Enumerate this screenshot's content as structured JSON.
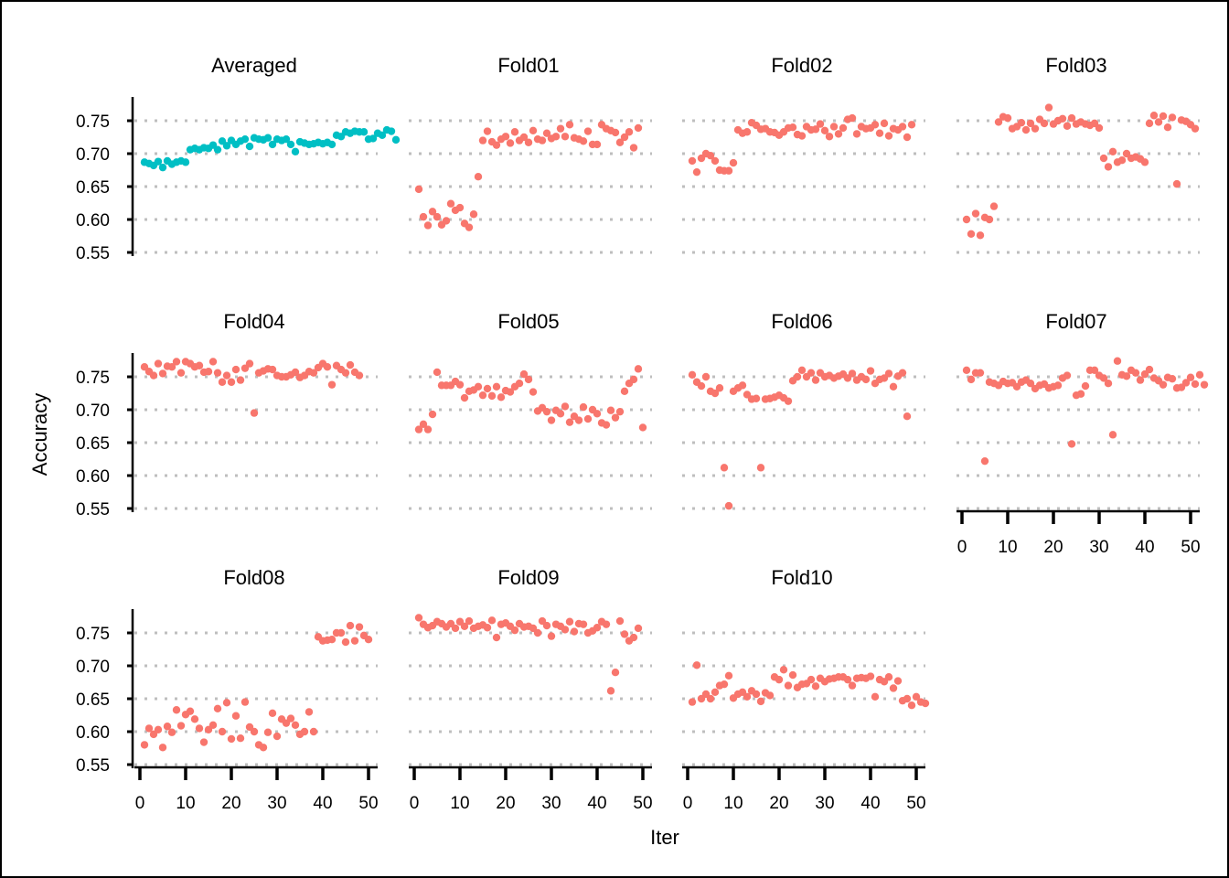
{
  "chart_data": {
    "type": "scatter",
    "xlabel": "Iter",
    "ylabel": "Accuracy",
    "xlim": [
      0,
      50
    ],
    "ylim": [
      0.55,
      0.76
    ],
    "x_ticks": [
      0,
      10,
      20,
      30,
      40,
      50
    ],
    "y_ticks": [
      0.55,
      0.6,
      0.65,
      0.7,
      0.75
    ],
    "y_tick_labels": [
      "0.55",
      "0.60",
      "0.65",
      "0.70",
      "0.75"
    ],
    "grid": "horizontal dotted",
    "colors": {
      "averaged": "#00BFC4",
      "fold": "#F8766D",
      "grid": "#BEBEBE"
    },
    "panels": [
      {
        "name": "Averaged",
        "color": "averaged",
        "x_start": 1,
        "values": [
          0.687,
          0.685,
          0.682,
          0.688,
          0.679,
          0.689,
          0.684,
          0.687,
          0.689,
          0.687,
          0.706,
          0.708,
          0.706,
          0.709,
          0.708,
          0.713,
          0.706,
          0.719,
          0.712,
          0.72,
          0.714,
          0.719,
          0.722,
          0.711,
          0.724,
          0.722,
          0.721,
          0.724,
          0.714,
          0.722,
          0.72,
          0.722,
          0.714,
          0.703,
          0.718,
          0.716,
          0.714,
          0.715,
          0.717,
          0.715,
          0.717,
          0.714,
          0.728,
          0.726,
          0.733,
          0.731,
          0.734,
          0.733,
          0.733,
          0.722,
          0.723,
          0.731,
          0.728,
          0.736,
          0.734,
          0.721
        ]
      },
      {
        "name": "Fold01",
        "color": "fold",
        "x_start": 1,
        "values": [
          0.646,
          0.604,
          0.591,
          0.612,
          0.604,
          0.592,
          0.598,
          0.624,
          0.614,
          0.618,
          0.594,
          0.588,
          0.608,
          0.665,
          0.72,
          0.734,
          0.718,
          0.713,
          0.722,
          0.726,
          0.716,
          0.733,
          0.72,
          0.725,
          0.717,
          0.735,
          0.722,
          0.72,
          0.731,
          0.723,
          0.726,
          0.738,
          0.726,
          0.744,
          0.724,
          0.722,
          0.719,
          0.734,
          0.714,
          0.714,
          0.744,
          0.738,
          0.735,
          0.732,
          0.717,
          0.725,
          0.733,
          0.709,
          0.739
        ]
      },
      {
        "name": "Fold02",
        "color": "fold",
        "x_start": 1,
        "values": [
          0.689,
          0.672,
          0.693,
          0.7,
          0.697,
          0.689,
          0.675,
          0.674,
          0.674,
          0.686,
          0.736,
          0.731,
          0.733,
          0.747,
          0.743,
          0.737,
          0.738,
          0.733,
          0.732,
          0.728,
          0.733,
          0.739,
          0.74,
          0.729,
          0.727,
          0.741,
          0.736,
          0.737,
          0.745,
          0.735,
          0.726,
          0.741,
          0.73,
          0.739,
          0.752,
          0.754,
          0.73,
          0.741,
          0.738,
          0.739,
          0.744,
          0.731,
          0.746,
          0.727,
          0.738,
          0.736,
          0.741,
          0.725,
          0.744
        ]
      },
      {
        "name": "Fold03",
        "color": "fold",
        "x_start": 1,
        "values": [
          0.6,
          0.578,
          0.609,
          0.576,
          0.603,
          0.6,
          0.62,
          0.748,
          0.756,
          0.754,
          0.738,
          0.741,
          0.747,
          0.736,
          0.746,
          0.738,
          0.752,
          0.746,
          0.77,
          0.745,
          0.75,
          0.753,
          0.742,
          0.754,
          0.745,
          0.748,
          0.745,
          0.743,
          0.746,
          0.739,
          0.693,
          0.68,
          0.703,
          0.687,
          0.69,
          0.7,
          0.693,
          0.695,
          0.692,
          0.687,
          0.746,
          0.758,
          0.748,
          0.757,
          0.74,
          0.755,
          0.654,
          0.751,
          0.749,
          0.744,
          0.738
        ]
      },
      {
        "name": "Fold04",
        "color": "fold",
        "x_start": 1,
        "values": [
          0.765,
          0.758,
          0.752,
          0.77,
          0.755,
          0.766,
          0.765,
          0.773,
          0.756,
          0.773,
          0.77,
          0.765,
          0.767,
          0.757,
          0.758,
          0.773,
          0.756,
          0.742,
          0.752,
          0.742,
          0.761,
          0.745,
          0.763,
          0.77,
          0.695,
          0.756,
          0.759,
          0.762,
          0.761,
          0.752,
          0.75,
          0.75,
          0.753,
          0.757,
          0.749,
          0.752,
          0.758,
          0.756,
          0.764,
          0.77,
          0.765,
          0.738,
          0.767,
          0.761,
          0.756,
          0.768,
          0.757,
          0.752
        ]
      },
      {
        "name": "Fold05",
        "color": "fold",
        "x_start": 1,
        "values": [
          0.67,
          0.678,
          0.67,
          0.693,
          0.757,
          0.737,
          0.737,
          0.737,
          0.743,
          0.738,
          0.718,
          0.728,
          0.73,
          0.735,
          0.722,
          0.732,
          0.721,
          0.735,
          0.719,
          0.729,
          0.727,
          0.735,
          0.74,
          0.754,
          0.746,
          0.727,
          0.698,
          0.703,
          0.697,
          0.684,
          0.699,
          0.694,
          0.705,
          0.681,
          0.69,
          0.684,
          0.704,
          0.686,
          0.7,
          0.694,
          0.68,
          0.677,
          0.699,
          0.688,
          0.697,
          0.728,
          0.74,
          0.746,
          0.762,
          0.673
        ]
      },
      {
        "name": "Fold06",
        "color": "fold",
        "x_start": 1,
        "values": [
          0.753,
          0.742,
          0.736,
          0.75,
          0.728,
          0.725,
          0.733,
          0.612,
          0.554,
          0.728,
          0.733,
          0.737,
          0.723,
          0.716,
          0.717,
          0.612,
          0.716,
          0.717,
          0.719,
          0.722,
          0.718,
          0.713,
          0.744,
          0.75,
          0.76,
          0.75,
          0.756,
          0.745,
          0.756,
          0.75,
          0.752,
          0.748,
          0.751,
          0.754,
          0.748,
          0.755,
          0.745,
          0.75,
          0.746,
          0.759,
          0.74,
          0.746,
          0.748,
          0.755,
          0.735,
          0.751,
          0.756,
          0.69
        ]
      },
      {
        "name": "Fold07",
        "color": "fold",
        "x_start": 1,
        "values": [
          0.76,
          0.746,
          0.756,
          0.756,
          0.622,
          0.742,
          0.74,
          0.737,
          0.743,
          0.74,
          0.741,
          0.735,
          0.742,
          0.745,
          0.74,
          0.732,
          0.737,
          0.739,
          0.733,
          0.735,
          0.737,
          0.748,
          0.752,
          0.648,
          0.722,
          0.724,
          0.736,
          0.76,
          0.76,
          0.752,
          0.748,
          0.74,
          0.662,
          0.774,
          0.753,
          0.751,
          0.76,
          0.756,
          0.745,
          0.754,
          0.761,
          0.748,
          0.744,
          0.738,
          0.749,
          0.747,
          0.733,
          0.734,
          0.741,
          0.749,
          0.739,
          0.753,
          0.738
        ]
      },
      {
        "name": "Fold08",
        "color": "fold",
        "x_start": 1,
        "values": [
          0.58,
          0.605,
          0.596,
          0.603,
          0.576,
          0.608,
          0.599,
          0.633,
          0.609,
          0.626,
          0.631,
          0.619,
          0.605,
          0.584,
          0.603,
          0.61,
          0.635,
          0.6,
          0.644,
          0.589,
          0.624,
          0.59,
          0.645,
          0.607,
          0.6,
          0.58,
          0.576,
          0.599,
          0.628,
          0.593,
          0.619,
          0.613,
          0.62,
          0.61,
          0.596,
          0.6,
          0.63,
          0.6,
          0.744,
          0.738,
          0.739,
          0.74,
          0.75,
          0.75,
          0.736,
          0.761,
          0.738,
          0.759,
          0.746,
          0.74
        ]
      },
      {
        "name": "Fold09",
        "color": "fold",
        "x_start": 1,
        "values": [
          0.773,
          0.763,
          0.758,
          0.761,
          0.767,
          0.764,
          0.759,
          0.764,
          0.757,
          0.767,
          0.76,
          0.768,
          0.757,
          0.76,
          0.762,
          0.758,
          0.769,
          0.743,
          0.763,
          0.765,
          0.76,
          0.754,
          0.764,
          0.759,
          0.76,
          0.757,
          0.75,
          0.768,
          0.761,
          0.745,
          0.763,
          0.76,
          0.755,
          0.767,
          0.752,
          0.764,
          0.763,
          0.75,
          0.753,
          0.758,
          0.767,
          0.763,
          0.662,
          0.69,
          0.768,
          0.748,
          0.738,
          0.743,
          0.757
        ]
      },
      {
        "name": "Fold10",
        "color": "fold",
        "x_start": 1,
        "values": [
          0.645,
          0.701,
          0.65,
          0.657,
          0.65,
          0.66,
          0.67,
          0.672,
          0.685,
          0.651,
          0.657,
          0.66,
          0.653,
          0.662,
          0.657,
          0.646,
          0.659,
          0.655,
          0.683,
          0.679,
          0.694,
          0.67,
          0.686,
          0.667,
          0.672,
          0.673,
          0.679,
          0.669,
          0.681,
          0.676,
          0.68,
          0.681,
          0.683,
          0.683,
          0.679,
          0.67,
          0.681,
          0.682,
          0.681,
          0.684,
          0.653,
          0.679,
          0.676,
          0.683,
          0.666,
          0.677,
          0.647,
          0.65,
          0.64,
          0.653,
          0.645,
          0.643
        ]
      }
    ]
  }
}
